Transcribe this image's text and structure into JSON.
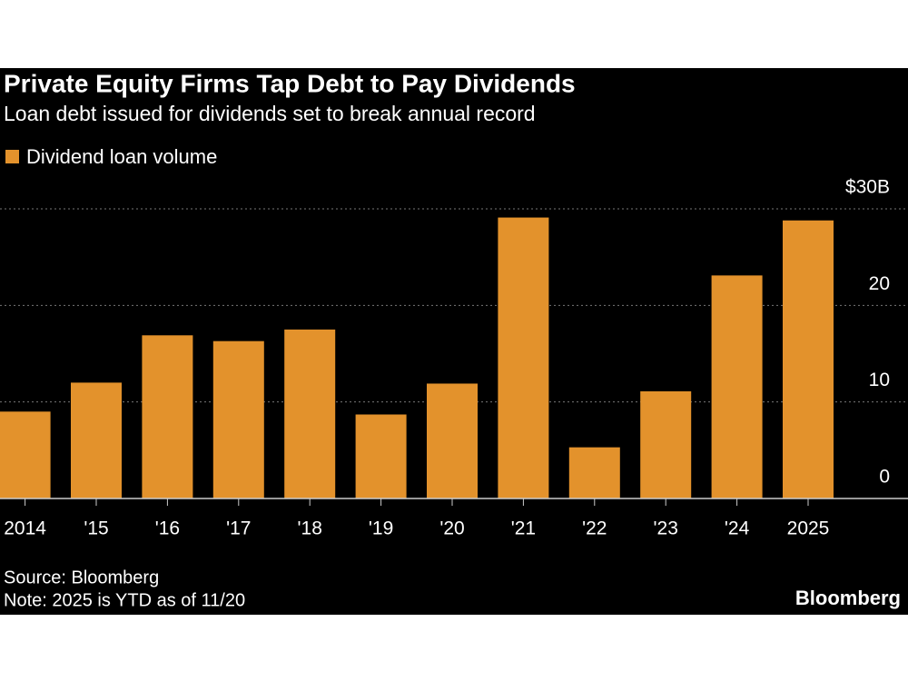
{
  "chart_data": {
    "type": "bar",
    "title": "Private Equity Firms Tap Debt to Pay Dividends",
    "subtitle": "Loan debt issued for dividends set to break annual record",
    "categories": [
      "2014",
      "'15",
      "'16",
      "'17",
      "'18",
      "'19",
      "'20",
      "'21",
      "'22",
      "'23",
      "'24",
      "2025"
    ],
    "series": [
      {
        "name": "Dividend loan volume",
        "color": "#e3922c",
        "values": [
          9.0,
          12.0,
          16.9,
          16.3,
          17.5,
          8.7,
          11.9,
          29.1,
          5.3,
          11.1,
          23.1,
          28.8
        ]
      }
    ],
    "ylim": [
      0,
      30
    ],
    "yticks": [
      0,
      10,
      20,
      {
        "value": 30,
        "label": "$30B"
      }
    ],
    "grid": true,
    "source": "Source: Bloomberg",
    "note": "Note: 2025 is YTD as of 11/20",
    "brand": "Bloomberg"
  }
}
